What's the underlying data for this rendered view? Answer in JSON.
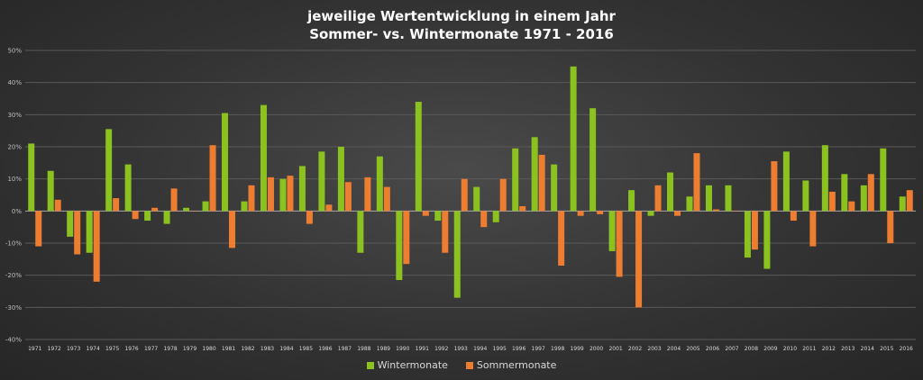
{
  "chart_data": {
    "type": "bar",
    "title": "jeweilige Wertentwicklung in einem Jahr",
    "subtitle": "Sommer- vs. Wintermonate 1971 - 2016",
    "xlabel": "",
    "ylabel": "",
    "ylim": [
      -40,
      50
    ],
    "yticks": [
      "-40%",
      "-30%",
      "-20%",
      "-10%",
      "0%",
      "10%",
      "20%",
      "30%",
      "40%",
      "50%"
    ],
    "ytick_values": [
      -40,
      -30,
      -20,
      -10,
      0,
      10,
      20,
      30,
      40,
      50
    ],
    "grid": true,
    "legend": "bottom",
    "categories": [
      "1971",
      "1972",
      "1973",
      "1974",
      "1975",
      "1976",
      "1977",
      "1978",
      "1979",
      "1980",
      "1981",
      "1982",
      "1983",
      "1984",
      "1985",
      "1986",
      "1987",
      "1988",
      "1989",
      "1990",
      "1991",
      "1992",
      "1993",
      "1994",
      "1995",
      "1996",
      "1997",
      "1998",
      "1999",
      "2000",
      "2001",
      "2002",
      "2003",
      "2004",
      "2005",
      "2006",
      "2007",
      "2008",
      "2009",
      "2010",
      "2011",
      "2012",
      "2013",
      "2014",
      "2015",
      "2016"
    ],
    "series": [
      {
        "name": "Wintermonate",
        "color": "#8cc21f",
        "values": [
          21,
          12.5,
          -8,
          -13,
          25.5,
          14.5,
          -3,
          -4,
          1,
          3,
          30.5,
          3,
          33,
          10,
          14,
          18.5,
          20,
          -13,
          17,
          -21.5,
          34,
          -3,
          -27,
          7.5,
          -3.5,
          19.5,
          23,
          14.5,
          45,
          32,
          -12.5,
          6.5,
          -1.5,
          12,
          4.5,
          8,
          8,
          -14.5,
          -18,
          18.5,
          9.5,
          20.5,
          11.5,
          8,
          19.5,
          4.5
        ]
      },
      {
        "name": "Sommermonate",
        "color": "#ed7d31",
        "values": [
          -11,
          3.5,
          -13.5,
          -22,
          4,
          -2.5,
          1,
          7,
          0,
          20.5,
          -11.5,
          8,
          10.5,
          11,
          -4,
          2,
          9,
          10.5,
          7.5,
          -16.5,
          -1.5,
          -13,
          10,
          -5,
          10,
          1.5,
          17.5,
          -17,
          -1.5,
          -1,
          -20.5,
          -30,
          8,
          -1.5,
          18,
          0.5,
          0,
          -12,
          15.5,
          -3,
          -11,
          6,
          3,
          11.5,
          -10,
          6.5
        ]
      }
    ]
  }
}
